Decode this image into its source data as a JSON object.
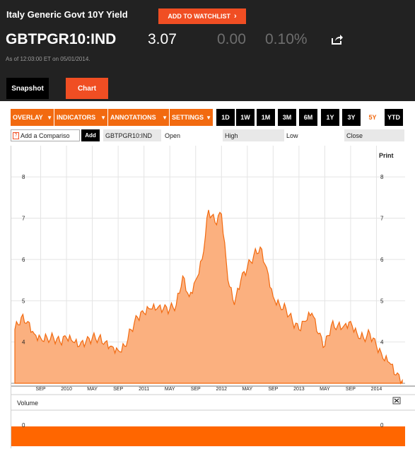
{
  "header": {
    "title": "Italy Generic Govt 10Y Yield",
    "watchlist_label": "ADD TO WATCHLIST",
    "ticker": "GBTPGR10:IND",
    "price": "3.07",
    "change": "0.00",
    "change_pct": "0.10%",
    "as_of": "As of 12:03:00 ET on 05/01/2014."
  },
  "tabs": [
    "Snapshot",
    "Chart"
  ],
  "toolbar": {
    "dropdowns": [
      "OVERLAY",
      "INDICATORS",
      "ANNOTATIONS",
      "SETTINGS"
    ],
    "ranges": [
      "1D",
      "1W",
      "1M",
      "3M",
      "6M",
      "1Y",
      "3Y",
      "5Y",
      "YTD"
    ],
    "selected_range": "5Y"
  },
  "compare_row": {
    "placeholder": "Add a Compariso",
    "add_label": "Add",
    "symbol": "GBTPGR10:IND",
    "labels": [
      "Open",
      "High",
      "Low",
      "Close"
    ]
  },
  "print_label": "Print",
  "volume_label": "Volume",
  "colors": {
    "accent": "#f04e23",
    "orange": "#f26a10",
    "area_fill": "#fbb07f",
    "area_line": "#f26a10"
  },
  "icons": {
    "share": "share-icon",
    "close": "close-icon",
    "help": "help-icon"
  },
  "chart_data": [
    {
      "type": "area",
      "x_ticks": [
        "SEP",
        "2010",
        "MAY",
        "SEP",
        "2011",
        "MAY",
        "SEP",
        "2012",
        "MAY",
        "SEP",
        "2013",
        "MAY",
        "SEP",
        "2014"
      ],
      "y_ticks": [
        4,
        5,
        6,
        7,
        8
      ],
      "ylim": [
        3.0,
        8.5
      ],
      "grid": true,
      "x": [
        "2009-05",
        "2009-06",
        "2009-07",
        "2009-08",
        "2009-09",
        "2009-10",
        "2009-11",
        "2009-12",
        "2010-01",
        "2010-02",
        "2010-03",
        "2010-04",
        "2010-05",
        "2010-06",
        "2010-07",
        "2010-08",
        "2010-09",
        "2010-10",
        "2010-11",
        "2010-12",
        "2011-01",
        "2011-02",
        "2011-03",
        "2011-04",
        "2011-05",
        "2011-06",
        "2011-07",
        "2011-08",
        "2011-09",
        "2011-10",
        "2011-11",
        "2011-12",
        "2012-01",
        "2012-02",
        "2012-03",
        "2012-04",
        "2012-05",
        "2012-06",
        "2012-07",
        "2012-08",
        "2012-09",
        "2012-10",
        "2012-11",
        "2012-12",
        "2013-01",
        "2013-02",
        "2013-03",
        "2013-04",
        "2013-05",
        "2013-06",
        "2013-07",
        "2013-08",
        "2013-09",
        "2013-10",
        "2013-11",
        "2013-12",
        "2014-01",
        "2014-02",
        "2014-03",
        "2014-04",
        "2014-05"
      ],
      "values": [
        4.3,
        4.6,
        4.5,
        4.2,
        4.1,
        4.1,
        4.1,
        4.0,
        4.1,
        4.0,
        3.9,
        4.0,
        4.1,
        4.1,
        4.0,
        3.9,
        3.8,
        3.9,
        4.3,
        4.6,
        4.7,
        4.8,
        4.8,
        4.8,
        4.8,
        4.9,
        5.6,
        5.1,
        5.5,
        6.0,
        7.2,
        6.9,
        7.1,
        5.5,
        4.9,
        5.5,
        5.8,
        6.1,
        6.3,
        5.8,
        5.1,
        4.9,
        4.8,
        4.5,
        4.3,
        4.5,
        4.7,
        4.2,
        3.9,
        4.4,
        4.4,
        4.4,
        4.5,
        4.2,
        4.1,
        4.2,
        3.9,
        3.6,
        3.5,
        3.2,
        3.07
      ]
    },
    {
      "type": "bar",
      "name": "Volume",
      "y_ticks": [
        0
      ],
      "values": [
        0
      ]
    }
  ]
}
